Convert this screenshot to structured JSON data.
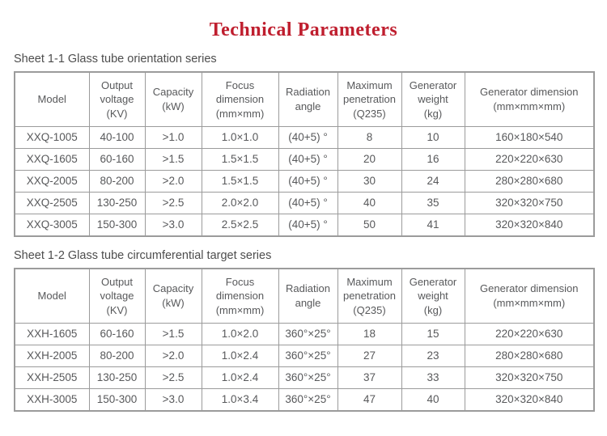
{
  "page": {
    "title": "Technical Parameters"
  },
  "colors": {
    "title_red": "#bf1e2e",
    "table_border_gray": "#9b9b9b",
    "text_gray": "#58595b"
  },
  "sheets": [
    {
      "label": "Sheet 1-1 Glass tube orientation series",
      "columns": [
        "Model",
        "Output\nvoltage\n(KV)",
        "Capacity\n(kW)",
        "Focus\ndimension\n(mm×mm)",
        "Radiation\nangle",
        "Maximum\npenetration\n(Q235)",
        "Generator\nweight\n(kg)",
        "Generator dimension\n(mm×mm×mm)"
      ],
      "rows": [
        [
          "XXQ-1005",
          "40-100",
          ">1.0",
          "1.0×1.0",
          "(40+5) °",
          "8",
          "10",
          "160×180×540"
        ],
        [
          "XXQ-1605",
          "60-160",
          ">1.5",
          "1.5×1.5",
          "(40+5) °",
          "20",
          "16",
          "220×220×630"
        ],
        [
          "XXQ-2005",
          "80-200",
          ">2.0",
          "1.5×1.5",
          "(40+5) °",
          "30",
          "24",
          "280×280×680"
        ],
        [
          "XXQ-2505",
          "130-250",
          ">2.5",
          "2.0×2.0",
          "(40+5) °",
          "40",
          "35",
          "320×320×750"
        ],
        [
          "XXQ-3005",
          "150-300",
          ">3.0",
          "2.5×2.5",
          "(40+5) °",
          "50",
          "41",
          "320×320×840"
        ]
      ]
    },
    {
      "label": "Sheet 1-2 Glass tube circumferential target series",
      "columns": [
        "Model",
        "Output\nvoltage\n(KV)",
        "Capacity\n(kW)",
        "Focus\ndimension\n(mm×mm)",
        "Radiation\nangle",
        "Maximum\npenetration\n(Q235)",
        "Generator\nweight\n(kg)",
        "Generator dimension\n(mm×mm×mm)"
      ],
      "rows": [
        [
          "XXH-1605",
          "60-160",
          ">1.5",
          "1.0×2.0",
          "360°×25°",
          "18",
          "15",
          "220×220×630"
        ],
        [
          "XXH-2005",
          "80-200",
          ">2.0",
          "1.0×2.4",
          "360°×25°",
          "27",
          "23",
          "280×280×680"
        ],
        [
          "XXH-2505",
          "130-250",
          ">2.5",
          "1.0×2.4",
          "360°×25°",
          "37",
          "33",
          "320×320×750"
        ],
        [
          "XXH-3005",
          "150-300",
          ">3.0",
          "1.0×3.4",
          "360°×25°",
          "47",
          "40",
          "320×320×840"
        ]
      ]
    }
  ]
}
